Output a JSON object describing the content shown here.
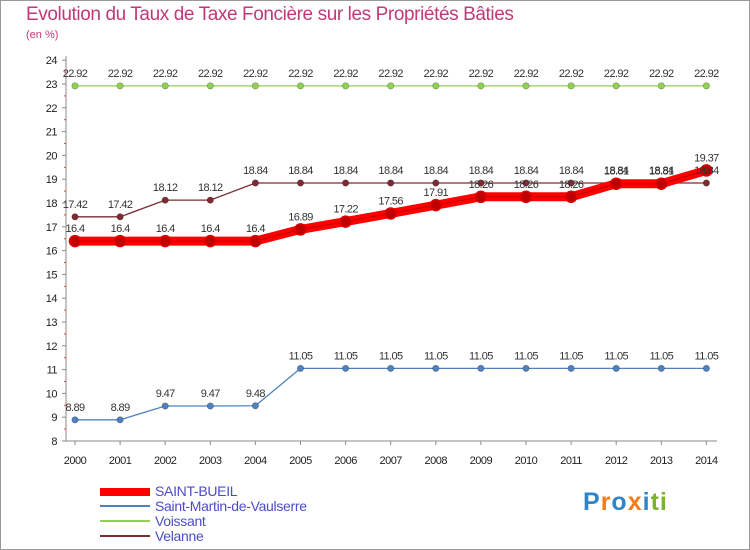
{
  "title": "Evolution du Taux de Taxe Foncière sur les Propriétés Bâties",
  "unit_label": "(en %)",
  "logo": {
    "letters": [
      "P",
      "r",
      "o",
      "x",
      "i",
      "t",
      "i"
    ],
    "colors": [
      "#2e86c8",
      "#f07d1a",
      "#2e86c8",
      "#f07d1a",
      "#2e86c8",
      "#7ab32e",
      "#7ab32e"
    ]
  },
  "chart_data": {
    "type": "line",
    "title": "Evolution du Taux de Taxe Foncière sur les Propriétés Bâties",
    "ylabel": "(en %)",
    "xlabel": "",
    "x": [
      2000,
      2001,
      2002,
      2003,
      2004,
      2005,
      2006,
      2007,
      2008,
      2009,
      2010,
      2011,
      2012,
      2013,
      2014
    ],
    "ylim": [
      8,
      24
    ],
    "yticks": [
      8,
      9,
      10,
      11,
      12,
      13,
      14,
      15,
      16,
      17,
      18,
      19,
      20,
      21,
      22,
      23,
      24
    ],
    "grid": false,
    "legend_position": "bottom-left",
    "series": [
      {
        "name": "Voissant",
        "color": "#92d050",
        "values": [
          22.92,
          22.92,
          22.92,
          22.92,
          22.92,
          22.92,
          22.92,
          22.92,
          22.92,
          22.92,
          22.92,
          22.92,
          22.92,
          22.92,
          22.92
        ],
        "labels": [
          "22.92",
          "22.92",
          "22.92",
          "22.92",
          "22.92",
          "22.92",
          "22.92",
          "22.92",
          "22.92",
          "22.92",
          "22.92",
          "22.92",
          "22.92",
          "22.92",
          "22.92"
        ]
      },
      {
        "name": "Velanne",
        "color": "#7f2b34",
        "values": [
          17.42,
          17.42,
          18.12,
          18.12,
          18.84,
          18.84,
          18.84,
          18.84,
          18.84,
          18.84,
          18.84,
          18.84,
          18.84,
          18.84,
          18.84
        ],
        "labels": [
          "17.42",
          "17.42",
          "18.12",
          "18.12",
          "18.84",
          "18.84",
          "18.84",
          "18.84",
          "18.84",
          "18.84",
          "18.84",
          "18.84",
          "18.84",
          "18.84",
          "18.84"
        ]
      },
      {
        "name": "Saint-Martin-de-Vaulserre",
        "color": "#4f81bd",
        "values": [
          8.89,
          8.89,
          9.47,
          9.47,
          9.48,
          11.05,
          11.05,
          11.05,
          11.05,
          11.05,
          11.05,
          11.05,
          11.05,
          11.05,
          11.05
        ],
        "labels": [
          "8.89",
          "8.89",
          "9.47",
          "9.47",
          "9.48",
          "11.05",
          "11.05",
          "11.05",
          "11.05",
          "11.05",
          "11.05",
          "11.05",
          "11.05",
          "11.05",
          "11.05"
        ]
      },
      {
        "name": "SAINT-BUEIL",
        "color": "#ff0000",
        "values": [
          16.4,
          16.4,
          16.4,
          16.4,
          16.4,
          16.89,
          17.22,
          17.56,
          17.91,
          18.26,
          18.26,
          18.26,
          18.81,
          18.81,
          19.37
        ],
        "labels": [
          "16.4",
          "16.4",
          "16.4",
          "16.4",
          "16.4",
          "16.89",
          "17.22",
          "17.56",
          "17.91",
          "18.26",
          "18.26",
          "18.26",
          "18.81",
          "18.81",
          "19.37"
        ]
      }
    ],
    "legend": [
      {
        "name": "SAINT-BUEIL",
        "color": "#ff0000"
      },
      {
        "name": "Saint-Martin-de-Vaulserre",
        "color": "#4f81bd"
      },
      {
        "name": "Voissant",
        "color": "#92d050"
      },
      {
        "name": "Velanne",
        "color": "#7f2b34"
      }
    ]
  }
}
